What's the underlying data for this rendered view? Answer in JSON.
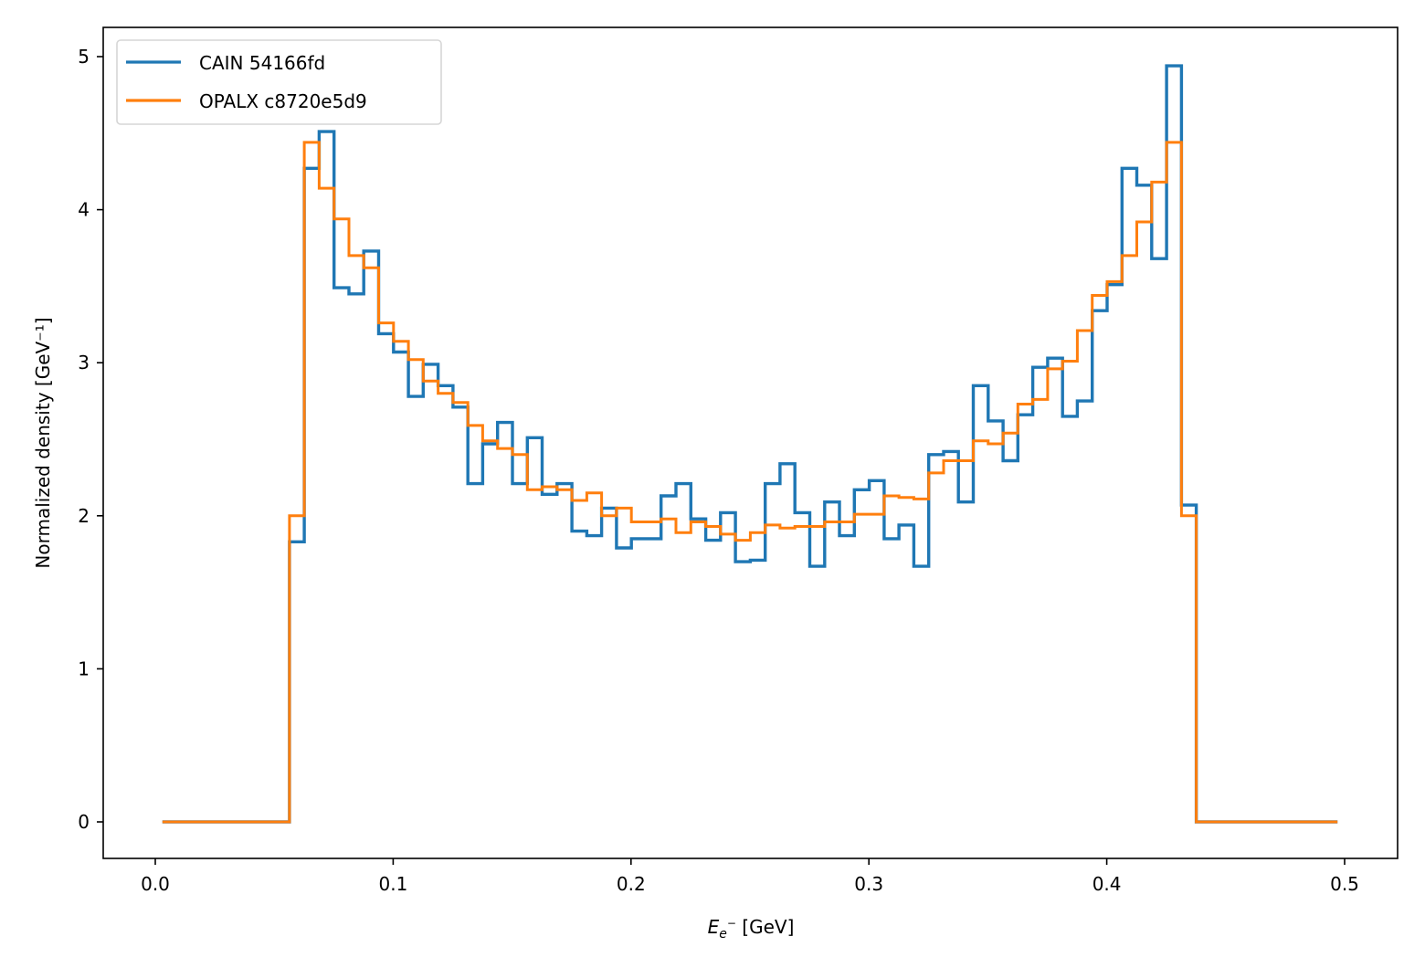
{
  "chart_data": {
    "type": "line",
    "subtype": "step-histogram",
    "title": "",
    "xlabel": "E_e- [GeV]",
    "xlabel_main": "E",
    "xlabel_sub": "e",
    "xlabel_sup": "−",
    "xlabel_unit": " [GeV]",
    "ylabel": "Normalized density [GeV⁻¹]",
    "xlim": [
      -0.022,
      0.522
    ],
    "ylim": [
      -0.24,
      5.2
    ],
    "xticks": [
      0.0,
      0.1,
      0.2,
      0.3,
      0.4,
      0.5
    ],
    "xtick_labels": [
      "0.0",
      "0.1",
      "0.2",
      "0.3",
      "0.4",
      "0.5"
    ],
    "yticks": [
      0,
      1,
      2,
      3,
      4,
      5
    ],
    "ytick_labels": [
      "0",
      "1",
      "2",
      "3",
      "4",
      "5"
    ],
    "grid": false,
    "legend_position": "upper left",
    "range_start": 0.003,
    "range_end": 0.497,
    "bin_start": 0.0564,
    "bin_width": 0.00625,
    "series": [
      {
        "name": "CAIN 54166fd",
        "color": "#1f77b4",
        "values": [
          1.83,
          4.27,
          4.51,
          3.49,
          3.45,
          3.73,
          3.19,
          3.07,
          2.78,
          2.99,
          2.85,
          2.71,
          2.21,
          2.47,
          2.61,
          2.21,
          2.51,
          2.14,
          2.21,
          1.9,
          1.87,
          2.05,
          1.79,
          1.85,
          1.85,
          2.13,
          2.21,
          1.98,
          1.84,
          2.02,
          1.7,
          1.71,
          2.21,
          2.34,
          2.02,
          1.67,
          2.09,
          1.87,
          2.17,
          2.23,
          1.85,
          1.94,
          1.67,
          2.4,
          2.42,
          2.09,
          2.85,
          2.62,
          2.36,
          2.66,
          2.97,
          3.03,
          2.65,
          2.75,
          3.34,
          3.51,
          4.27,
          4.16,
          3.68,
          4.94,
          2.07
        ]
      },
      {
        "name": "OPALX c8720e5d9",
        "color": "#ff7f0e",
        "values": [
          2.0,
          4.44,
          4.14,
          3.94,
          3.7,
          3.62,
          3.26,
          3.14,
          3.02,
          2.88,
          2.8,
          2.74,
          2.59,
          2.49,
          2.44,
          2.4,
          2.17,
          2.19,
          2.17,
          2.1,
          2.15,
          2.0,
          2.05,
          1.96,
          1.96,
          1.98,
          1.89,
          1.96,
          1.93,
          1.88,
          1.84,
          1.89,
          1.94,
          1.92,
          1.93,
          1.93,
          1.96,
          1.96,
          2.01,
          2.01,
          2.13,
          2.12,
          2.11,
          2.28,
          2.36,
          2.36,
          2.49,
          2.47,
          2.54,
          2.73,
          2.76,
          2.96,
          3.01,
          3.21,
          3.44,
          3.53,
          3.7,
          3.92,
          4.18,
          4.44,
          2.0
        ]
      }
    ]
  },
  "legend": {
    "items": [
      {
        "label": "CAIN 54166fd",
        "color": "#1f77b4"
      },
      {
        "label": "OPALX c8720e5d9",
        "color": "#ff7f0e"
      }
    ]
  }
}
